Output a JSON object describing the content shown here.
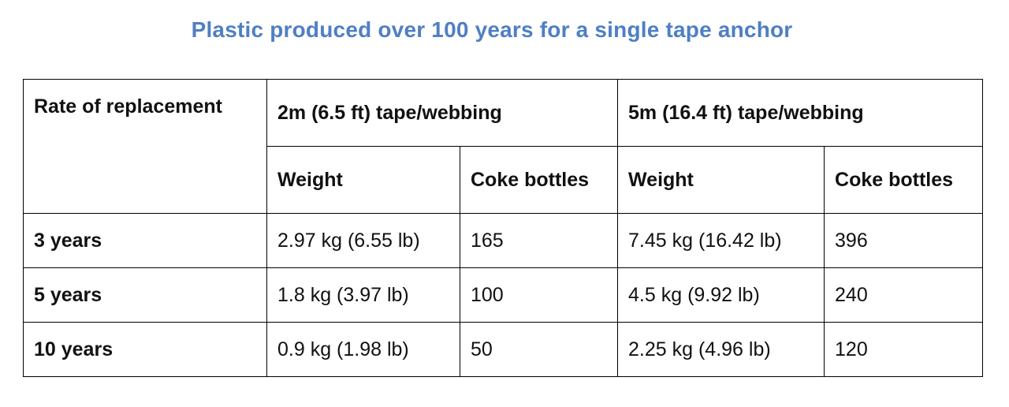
{
  "title": "Plastic produced over 100 years for a single tape anchor",
  "table": {
    "row_header_label": "Rate of replacement",
    "groups": [
      {
        "label": "2m (6.5 ft) tape/webbing",
        "weight_label": "Weight",
        "bottles_label": "Coke bottles"
      },
      {
        "label": "5m (16.4 ft) tape/webbing",
        "weight_label": "Weight",
        "bottles_label": "Coke bottles"
      }
    ],
    "rows": [
      {
        "rate": "3 years",
        "w2": "2.97 kg (6.55 lb)",
        "b2": "165",
        "w5": "7.45 kg (16.42 lb)",
        "b5": "396"
      },
      {
        "rate": "5 years",
        "w2": "1.8 kg (3.97 lb)",
        "b2": "100",
        "w5": "4.5 kg (9.92 lb)",
        "b5": "240"
      },
      {
        "rate": "10 years",
        "w2": "0.9 kg (1.98 lb)",
        "b2": "50",
        "w5": "2.25 kg (4.96 lb)",
        "b5": "120"
      }
    ]
  }
}
